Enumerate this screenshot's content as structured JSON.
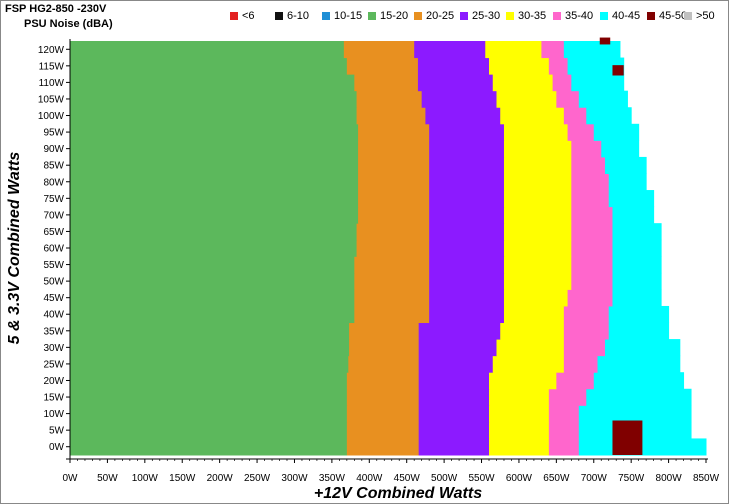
{
  "header": {
    "title": "FSP HG2-850 -230V",
    "subtitle": "PSU Noise (dBA)"
  },
  "legend": [
    {
      "label": "<6",
      "color": "#e32020"
    },
    {
      "label": "6-10",
      "color": "#111111"
    },
    {
      "label": "10-15",
      "color": "#1f8fd6"
    },
    {
      "label": "15-20",
      "color": "#5cb85c"
    },
    {
      "label": "20-25",
      "color": "#e89020"
    },
    {
      "label": "25-30",
      "color": "#8c1aff"
    },
    {
      "label": "30-35",
      "color": "#ffff00"
    },
    {
      "label": "35-40",
      "color": "#ff66cc"
    },
    {
      "label": "40-45",
      "color": "#00ffff"
    },
    {
      "label": "45-50",
      "color": "#800000"
    },
    {
      "label": ">50",
      "color": "#c0c0c0"
    }
  ],
  "chart_data": {
    "type": "heatmap",
    "title": "FSP HG2-850 -230V",
    "subtitle": "PSU Noise (dBA)",
    "xlabel": "+12V Combined Watts",
    "ylabel": "5 & 3.3V Combined Watts",
    "xlim": [
      0,
      850
    ],
    "ylim": [
      0,
      120
    ],
    "x_ticks": [
      "0W",
      "50W",
      "100W",
      "150W",
      "200W",
      "250W",
      "300W",
      "350W",
      "400W",
      "450W",
      "500W",
      "550W",
      "600W",
      "650W",
      "700W",
      "750W",
      "800W",
      "850W"
    ],
    "y_ticks": [
      "0W",
      "5W",
      "10W",
      "15W",
      "20W",
      "25W",
      "30W",
      "35W",
      "40W",
      "45W",
      "50W",
      "55W",
      "60W",
      "65W",
      "70W",
      "75W",
      "80W",
      "85W",
      "90W",
      "95W",
      "100W",
      "105W",
      "110W",
      "115W",
      "120W"
    ],
    "y": [
      0,
      5,
      10,
      15,
      20,
      25,
      30,
      35,
      40,
      45,
      50,
      55,
      60,
      65,
      70,
      75,
      80,
      85,
      90,
      95,
      100,
      105,
      110,
      115,
      120
    ],
    "band_colors": [
      "15-20",
      "20-25",
      "25-30",
      "30-35",
      "35-40",
      "40-45"
    ],
    "band_upper_edges_w": {
      "15-20": [
        370,
        370,
        370,
        370,
        370,
        372,
        373,
        373,
        380,
        380,
        380,
        380,
        383,
        383,
        385,
        385,
        385,
        385,
        385,
        385,
        383,
        383,
        380,
        370,
        366
      ],
      "20-25": [
        466,
        466,
        466,
        466,
        466,
        466,
        466,
        466,
        480,
        480,
        480,
        480,
        480,
        480,
        480,
        480,
        480,
        480,
        480,
        480,
        475,
        470,
        465,
        465,
        460
      ],
      "25-30": [
        560,
        560,
        560,
        560,
        560,
        565,
        570,
        575,
        580,
        580,
        580,
        580,
        580,
        580,
        580,
        580,
        580,
        580,
        580,
        580,
        575,
        570,
        565,
        560,
        555
      ],
      "30-35": [
        640,
        640,
        640,
        640,
        650,
        660,
        660,
        660,
        660,
        665,
        670,
        670,
        670,
        670,
        670,
        670,
        670,
        670,
        670,
        665,
        660,
        650,
        645,
        640,
        630
      ],
      "35-40": [
        680,
        680,
        680,
        690,
        700,
        705,
        715,
        720,
        720,
        725,
        725,
        725,
        725,
        725,
        725,
        720,
        720,
        715,
        710,
        700,
        690,
        680,
        670,
        665,
        660
      ],
      "40-45": [
        850,
        830,
        830,
        830,
        820,
        815,
        815,
        800,
        800,
        790,
        790,
        790,
        790,
        790,
        780,
        780,
        770,
        770,
        760,
        760,
        750,
        745,
        740,
        740,
        735
      ]
    },
    "hotspots_45_50": [
      {
        "x_range_w": [
          725,
          765
        ],
        "y_range_w": [
          0,
          10
        ]
      },
      {
        "x_range_w": [
          725,
          740
        ],
        "y_range_w": [
          110,
          113
        ]
      },
      {
        "x_range_w": [
          708,
          722
        ],
        "y_range_w": [
          119,
          121
        ]
      }
    ]
  }
}
